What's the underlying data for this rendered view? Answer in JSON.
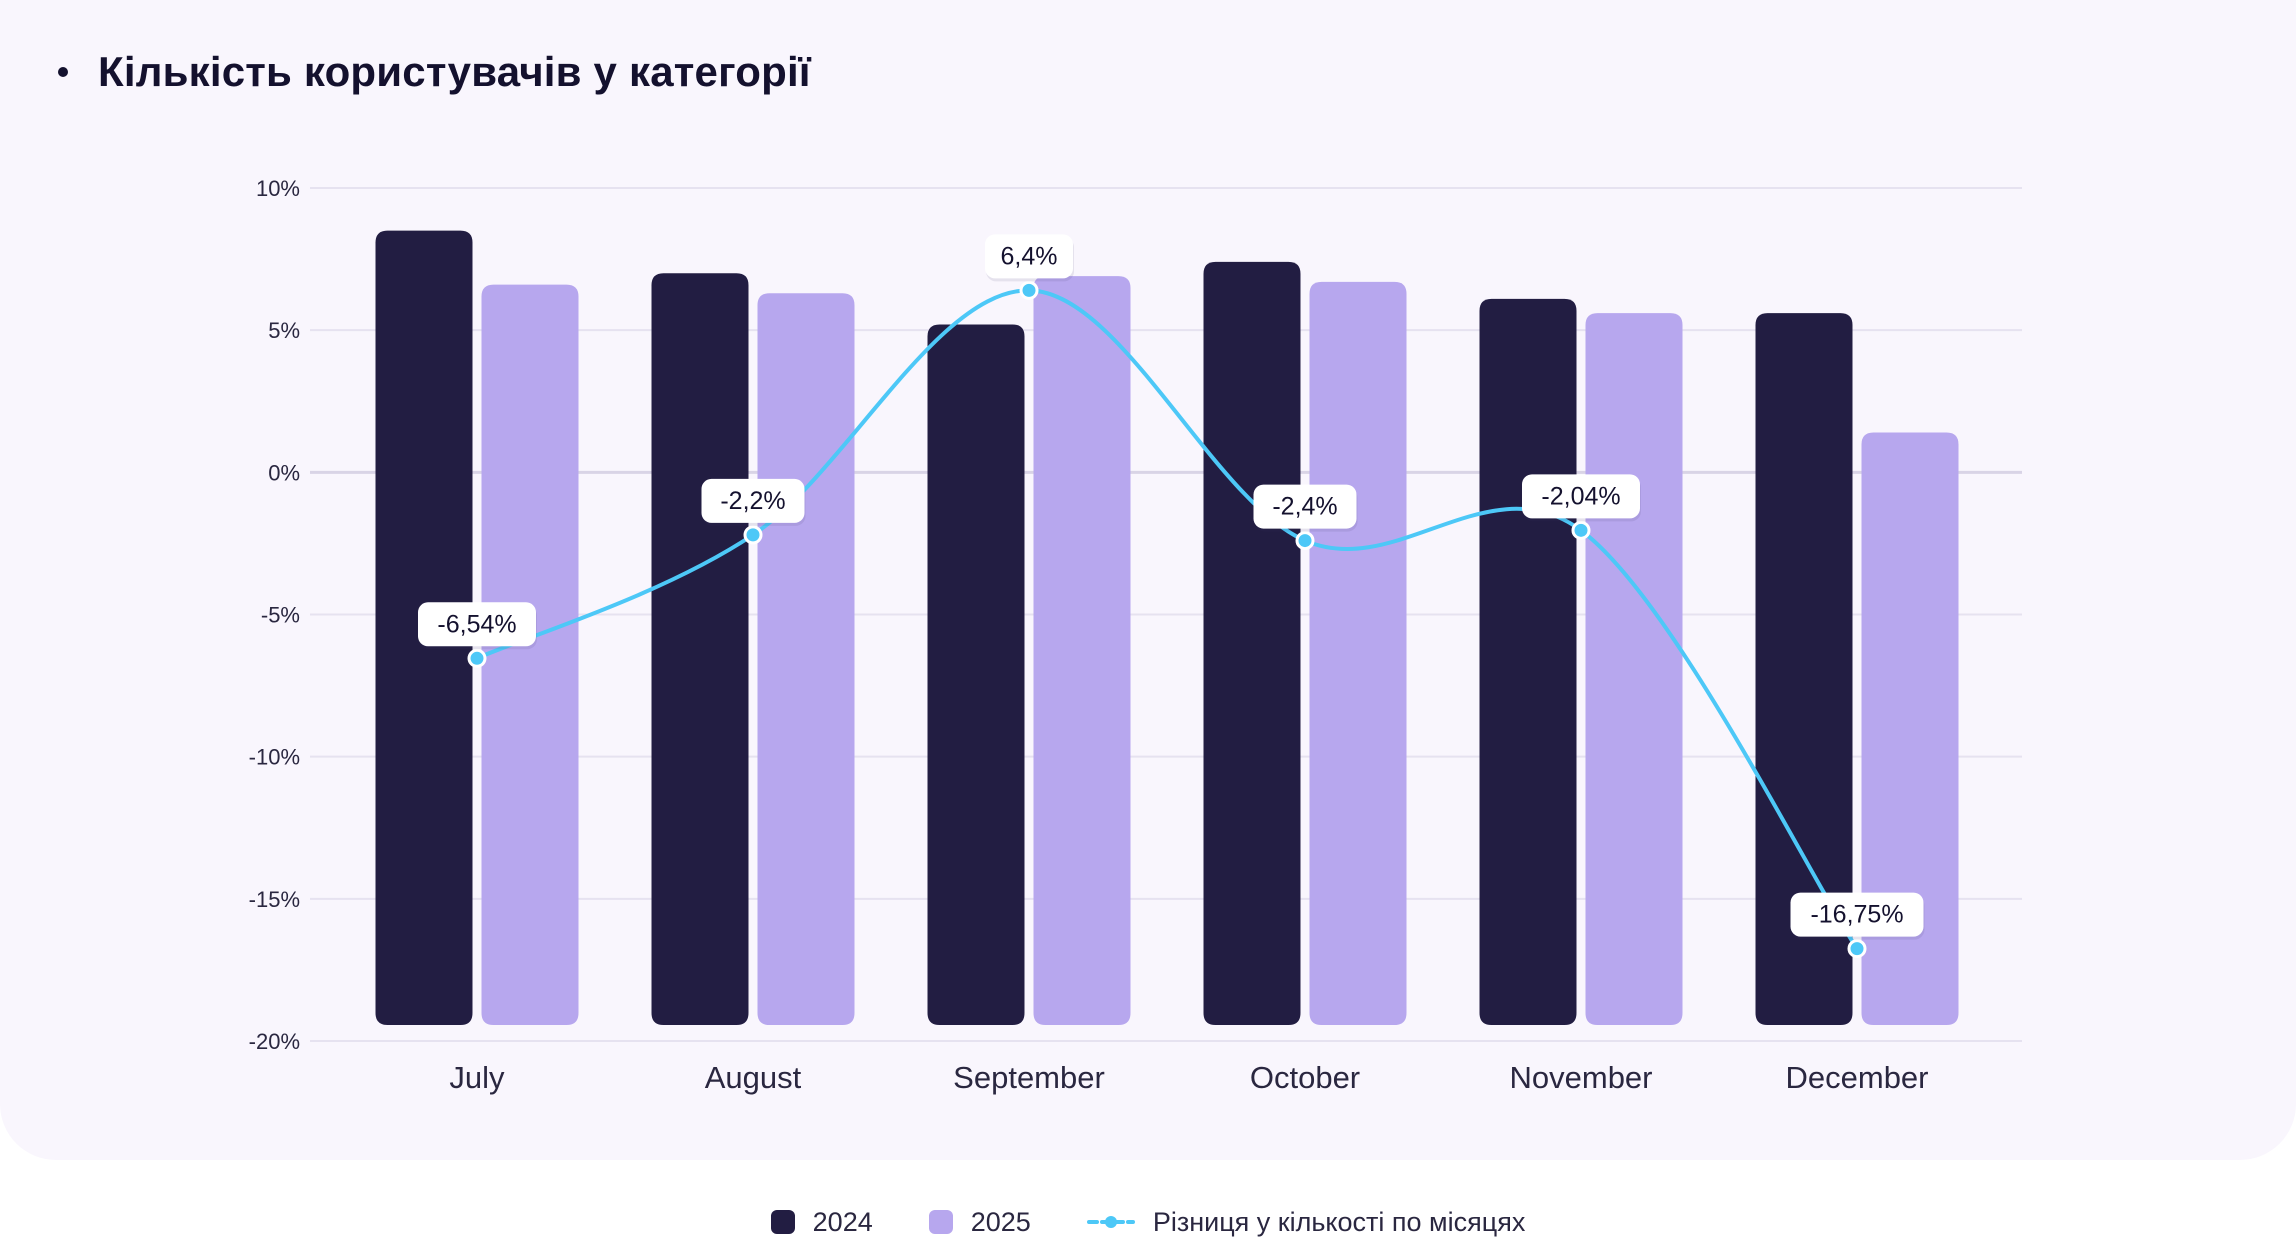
{
  "title": "Кількість користувачів у категорії",
  "colors": {
    "bar_2024": "#221d42",
    "bar_2025": "#b7a7ee",
    "line": "#4dc8f7",
    "grid": "#e6e2f0",
    "axis_text": "#2a2740",
    "label_bg": "#ffffff"
  },
  "chart_data": {
    "type": "bar",
    "title": "Кількість користувачів у категорії",
    "xlabel": "",
    "ylabel": "",
    "ylim": [
      -20,
      10
    ],
    "yticks": [
      10,
      5,
      0,
      -5,
      -10,
      -15,
      -20
    ],
    "ytick_labels": [
      "10%",
      "5%",
      "0%",
      "-5%",
      "-10%",
      "-15%",
      "-20%"
    ],
    "categories": [
      "July",
      "August",
      "September",
      "October",
      "November",
      "December"
    ],
    "series": [
      {
        "name": "2024",
        "kind": "bar",
        "values": [
          8.5,
          7.0,
          5.2,
          7.4,
          6.1,
          5.6
        ]
      },
      {
        "name": "2025",
        "kind": "bar",
        "values": [
          6.6,
          6.3,
          6.9,
          6.7,
          5.6,
          1.4
        ]
      },
      {
        "name": "Різниця у кількості по місяцях",
        "kind": "line",
        "values": [
          -6.54,
          -2.2,
          6.4,
          -2.4,
          -2.04,
          -16.75
        ],
        "labels": [
          "-6,54%",
          "-2,2%",
          "6,4%",
          "-2,4%",
          "-2,04%",
          "-16,75%"
        ]
      }
    ],
    "grid": true,
    "legend_position": "bottom-center"
  },
  "legend": [
    {
      "label": "2024",
      "type": "bar"
    },
    {
      "label": "2025",
      "type": "bar"
    },
    {
      "label": "Різниця у кількості по місяцях",
      "type": "line"
    }
  ]
}
